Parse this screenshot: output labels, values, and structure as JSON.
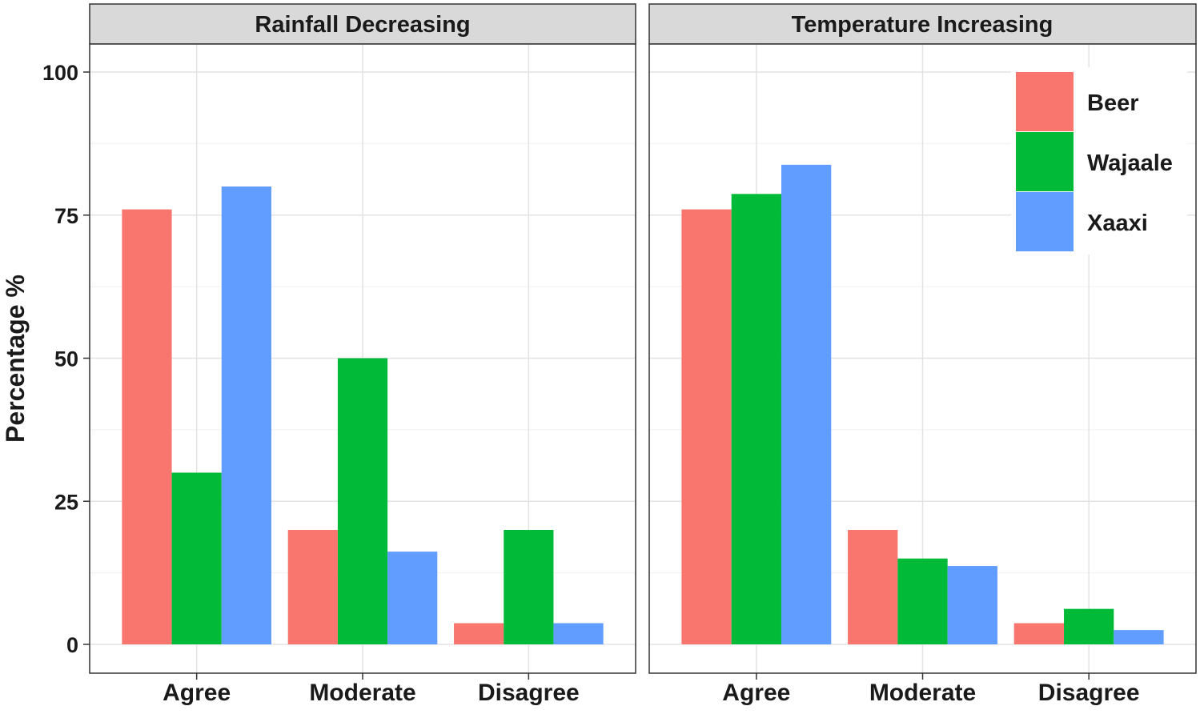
{
  "chart_data": {
    "type": "bar",
    "ylabel": "Percentage %",
    "ylim": [
      0,
      105
    ],
    "yticks": [
      0,
      25,
      50,
      75,
      100
    ],
    "grid": true,
    "legend_position": "top-right",
    "categories": [
      "Agree",
      "Moderate",
      "Disagree"
    ],
    "series_names": [
      "Beer",
      "Wajaale",
      "Xaaxi"
    ],
    "colors": [
      "#F8766D",
      "#00BA38",
      "#619CFF"
    ],
    "legend": [
      "Beer",
      "Wajaale",
      "Xaaxi"
    ],
    "panels": [
      {
        "title": "Rainfall Decreasing",
        "series": [
          {
            "name": "Beer",
            "values": [
              76,
              20,
              3.7
            ]
          },
          {
            "name": "Wajaale",
            "values": [
              30,
              50,
              20
            ]
          },
          {
            "name": "Xaaxi",
            "values": [
              80,
              16.2,
              3.7
            ]
          }
        ]
      },
      {
        "title": "Temperature Increasing",
        "series": [
          {
            "name": "Beer",
            "values": [
              76,
              20,
              3.7
            ]
          },
          {
            "name": "Wajaale",
            "values": [
              78.7,
              15,
              6.2
            ]
          },
          {
            "name": "Xaaxi",
            "values": [
              83.8,
              13.7,
              2.5
            ]
          }
        ]
      }
    ]
  }
}
